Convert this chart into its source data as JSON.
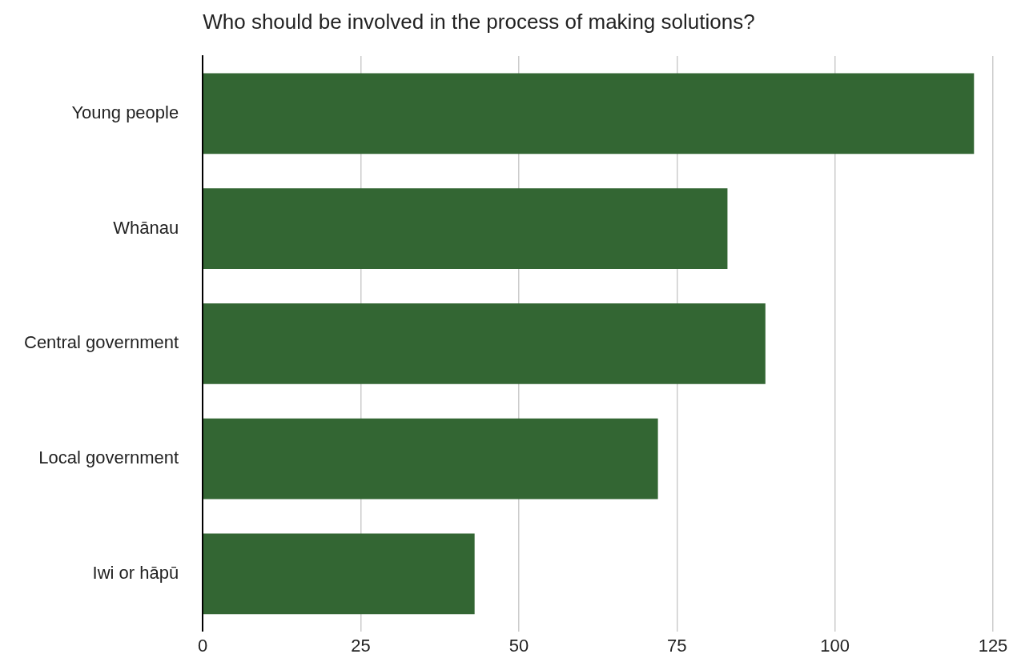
{
  "chart_data": {
    "type": "bar",
    "orientation": "horizontal",
    "title": "Who should be involved in the process of making solutions?",
    "categories": [
      "Young people",
      "Whānau",
      "Central government",
      "Local government",
      "Iwi or hāpū"
    ],
    "values": [
      122,
      83,
      89,
      72,
      43
    ],
    "color": "#336633",
    "xlim": [
      0,
      125
    ],
    "xticks": [
      0,
      25,
      50,
      75,
      100,
      125
    ],
    "grid": "x",
    "legend": false
  }
}
